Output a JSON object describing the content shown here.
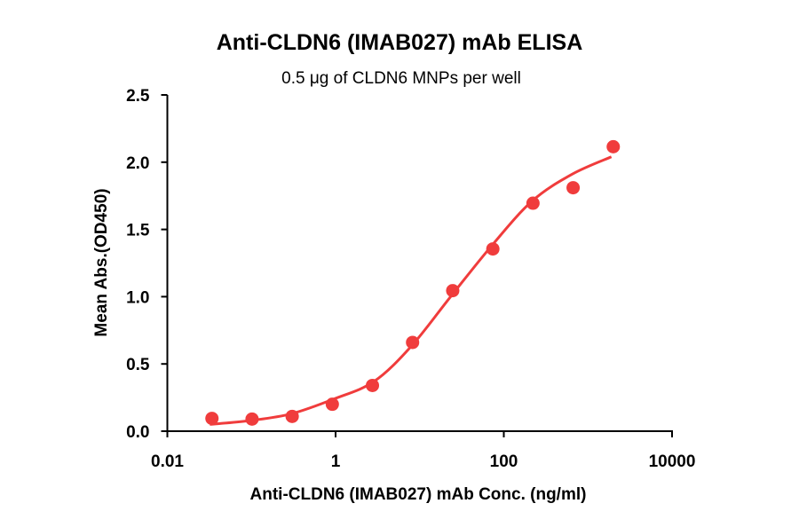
{
  "chart_data": {
    "type": "scatter",
    "title": "Anti-CLDN6 (IMAB027) mAb ELISA",
    "subtitle": "0.5 μg of CLDN6 MNPs per well",
    "xlabel": "Anti-CLDN6 (IMAB027) mAb Conc. (ng/ml)",
    "ylabel": "Mean Abs.(OD450)",
    "xscale": "log",
    "xlim": [
      0.01,
      10000
    ],
    "ylim": [
      0,
      2.5
    ],
    "xticks": [
      "0.01",
      "1",
      "100",
      "10000"
    ],
    "xtick_values": [
      0.01,
      1,
      100,
      10000
    ],
    "yticks": [
      "0.0",
      "0.5",
      "1.0",
      "1.5",
      "2.0",
      "2.5"
    ],
    "ytick_values": [
      0,
      0.5,
      1.0,
      1.5,
      2.0,
      2.5
    ],
    "grid": false,
    "color": "#f03c3c",
    "points": {
      "x": [
        0.0339,
        0.1016,
        0.3048,
        0.9145,
        2.743,
        8.23,
        24.69,
        74.07,
        222.2,
        666.7,
        2000
      ],
      "y": [
        0.095,
        0.09,
        0.11,
        0.2,
        0.34,
        0.66,
        1.045,
        1.355,
        1.695,
        1.81,
        2.115
      ]
    },
    "fit_curve": {
      "x": [
        0.032,
        0.1,
        0.3,
        0.96,
        2.87,
        7.9,
        23.3,
        72,
        216,
        646,
        1900
      ],
      "y": [
        0.05,
        0.08,
        0.13,
        0.24,
        0.37,
        0.63,
        1.0,
        1.38,
        1.71,
        1.91,
        2.04
      ]
    }
  }
}
